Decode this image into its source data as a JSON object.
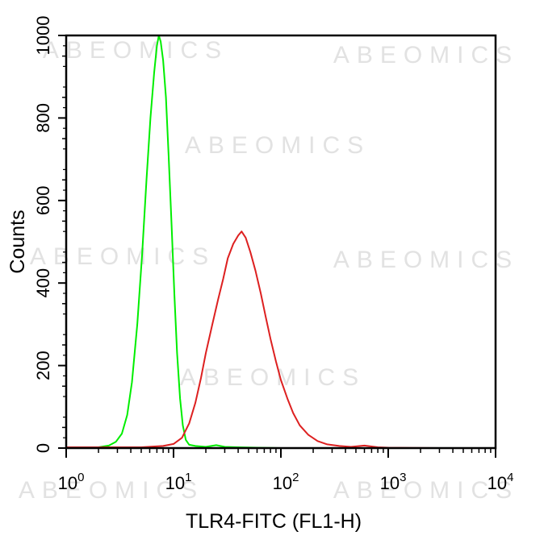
{
  "watermark": "ABEOMICS",
  "chart_data": {
    "type": "line",
    "title": "",
    "xlabel": "TLR4-FITC (FL1-H)",
    "ylabel": "Counts",
    "x_scale": "log",
    "xlim": [
      1,
      10000
    ],
    "ylim": [
      0,
      1000
    ],
    "x_ticks": [
      {
        "base": "10",
        "exp": "0",
        "value": 1
      },
      {
        "base": "10",
        "exp": "1",
        "value": 10
      },
      {
        "base": "10",
        "exp": "2",
        "value": 100
      },
      {
        "base": "10",
        "exp": "3",
        "value": 1000
      },
      {
        "base": "10",
        "exp": "4",
        "value": 10000
      }
    ],
    "y_ticks": [
      "0",
      "200",
      "400",
      "600",
      "800",
      "1000"
    ],
    "grid": false,
    "legend": "none",
    "series": [
      {
        "color": "#00ee00",
        "points": [
          [
            1.0,
            0
          ],
          [
            1.5,
            0
          ],
          [
            2.0,
            2
          ],
          [
            2.5,
            6
          ],
          [
            2.9,
            15
          ],
          [
            3.3,
            35
          ],
          [
            3.7,
            80
          ],
          [
            4.1,
            160
          ],
          [
            4.6,
            300
          ],
          [
            5.1,
            470
          ],
          [
            5.6,
            650
          ],
          [
            6.1,
            800
          ],
          [
            6.6,
            910
          ],
          [
            7.0,
            975
          ],
          [
            7.3,
            1000
          ],
          [
            7.6,
            985
          ],
          [
            8.0,
            940
          ],
          [
            8.5,
            850
          ],
          [
            9.0,
            710
          ],
          [
            9.6,
            540
          ],
          [
            10.2,
            370
          ],
          [
            10.8,
            230
          ],
          [
            11.5,
            120
          ],
          [
            12.2,
            55
          ],
          [
            13.0,
            20
          ],
          [
            14.0,
            8
          ],
          [
            16.0,
            5
          ],
          [
            20.0,
            3
          ],
          [
            25.0,
            7
          ],
          [
            30.0,
            3
          ],
          [
            40.0,
            2
          ],
          [
            60.0,
            1
          ],
          [
            100.0,
            0
          ],
          [
            300.0,
            0
          ],
          [
            1000.0,
            0
          ],
          [
            10000.0,
            0
          ]
        ]
      },
      {
        "color": "#dd2020",
        "points": [
          [
            1.0,
            2
          ],
          [
            2.0,
            2
          ],
          [
            5.0,
            2
          ],
          [
            8.0,
            5
          ],
          [
            10.0,
            10
          ],
          [
            12.0,
            25
          ],
          [
            14.0,
            60
          ],
          [
            16.0,
            110
          ],
          [
            18.0,
            170
          ],
          [
            20.0,
            230
          ],
          [
            23.0,
            300
          ],
          [
            26.0,
            360
          ],
          [
            29.0,
            410
          ],
          [
            32.0,
            460
          ],
          [
            36.0,
            495
          ],
          [
            40.0,
            515
          ],
          [
            43.0,
            525
          ],
          [
            47.0,
            510
          ],
          [
            52.0,
            475
          ],
          [
            58.0,
            430
          ],
          [
            65.0,
            375
          ],
          [
            72.0,
            320
          ],
          [
            80.0,
            265
          ],
          [
            90.0,
            210
          ],
          [
            100.0,
            165
          ],
          [
            115.0,
            120
          ],
          [
            130.0,
            85
          ],
          [
            150.0,
            55
          ],
          [
            180.0,
            32
          ],
          [
            220.0,
            17
          ],
          [
            270.0,
            9
          ],
          [
            350.0,
            5
          ],
          [
            450.0,
            3
          ],
          [
            600.0,
            6
          ],
          [
            800.0,
            2
          ],
          [
            1000.0,
            1
          ],
          [
            3000.0,
            0
          ],
          [
            10000.0,
            0
          ]
        ]
      }
    ]
  }
}
